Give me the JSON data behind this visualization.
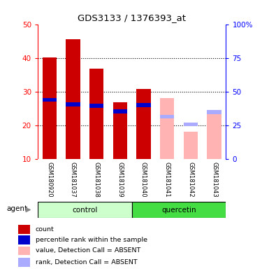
{
  "title": "GDS3133 / 1376393_at",
  "samples": [
    "GSM180920",
    "GSM181037",
    "GSM181038",
    "GSM181039",
    "GSM181040",
    "GSM181041",
    "GSM181042",
    "GSM181043"
  ],
  "count_values": [
    40.2,
    45.5,
    36.8,
    26.7,
    30.8,
    null,
    null,
    null
  ],
  "rank_values": [
    27.5,
    26.2,
    25.8,
    24.0,
    26.0,
    null,
    null,
    null
  ],
  "absent_value_values": [
    null,
    null,
    null,
    null,
    null,
    28.0,
    18.0,
    23.5
  ],
  "absent_rank_values": [
    null,
    null,
    null,
    null,
    null,
    22.5,
    20.2,
    23.8
  ],
  "count_color": "#cc0000",
  "rank_color": "#0000cc",
  "absent_value_color": "#ffb3b3",
  "absent_rank_color": "#aaaaff",
  "ylim_left": [
    10,
    50
  ],
  "yticks_left": [
    10,
    20,
    30,
    40,
    50
  ],
  "yticks_right": [
    0,
    25,
    50,
    75,
    100
  ],
  "ytick_labels_right": [
    "0",
    "25",
    "50",
    "75",
    "100%"
  ],
  "bar_width": 0.6,
  "legend_items": [
    {
      "label": "count",
      "color": "#cc0000"
    },
    {
      "label": "percentile rank within the sample",
      "color": "#0000cc"
    },
    {
      "label": "value, Detection Call = ABSENT",
      "color": "#ffb3b3"
    },
    {
      "label": "rank, Detection Call = ABSENT",
      "color": "#aaaaff"
    }
  ],
  "control_bg": "#ccffcc",
  "quercetin_bg": "#44dd44",
  "label_bg": "#cccccc"
}
